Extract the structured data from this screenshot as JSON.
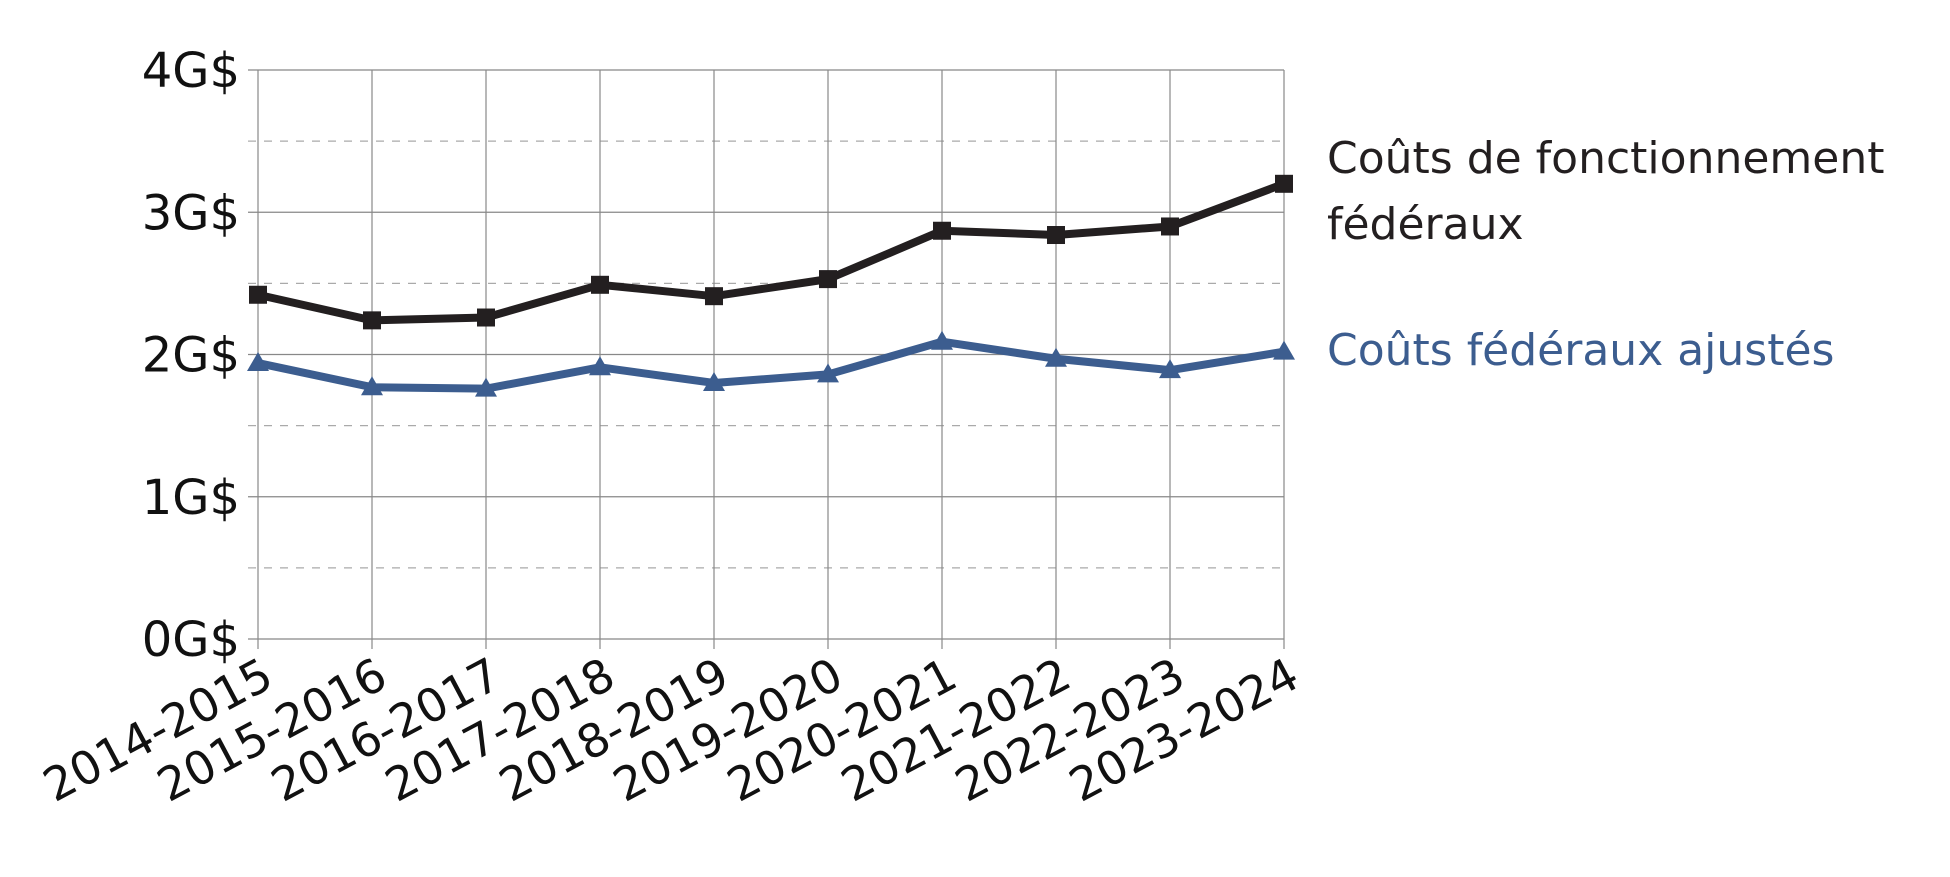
{
  "chart_data": {
    "type": "line",
    "categories": [
      "2014-2015",
      "2015-2016",
      "2016-2017",
      "2017-2018",
      "2018-2019",
      "2019-2020",
      "2020-2021",
      "2021-2022",
      "2022-2023",
      "2023-2024"
    ],
    "series": [
      {
        "name": "Coûts de fonctionnement fédéraux",
        "color": "#231f20",
        "marker": "square",
        "values": [
          2.42,
          2.24,
          2.26,
          2.49,
          2.41,
          2.53,
          2.87,
          2.84,
          2.9,
          3.2
        ]
      },
      {
        "name": "Coûts fédéraux ajustés",
        "color": "#3c5d8f",
        "marker": "triangle",
        "values": [
          1.94,
          1.77,
          1.76,
          1.91,
          1.8,
          1.86,
          2.09,
          1.97,
          1.89,
          2.02
        ]
      }
    ],
    "ylim": [
      0,
      4
    ],
    "yticks": [
      {
        "value": 0,
        "label": "0G$"
      },
      {
        "value": 1,
        "label": "1G$"
      },
      {
        "value": 2,
        "label": "2G$"
      },
      {
        "value": 3,
        "label": "3G$"
      },
      {
        "value": 4,
        "label": "4G$"
      }
    ],
    "minor_yticks": [
      0.5,
      1.5,
      2.5,
      3.5
    ],
    "grid": true
  }
}
